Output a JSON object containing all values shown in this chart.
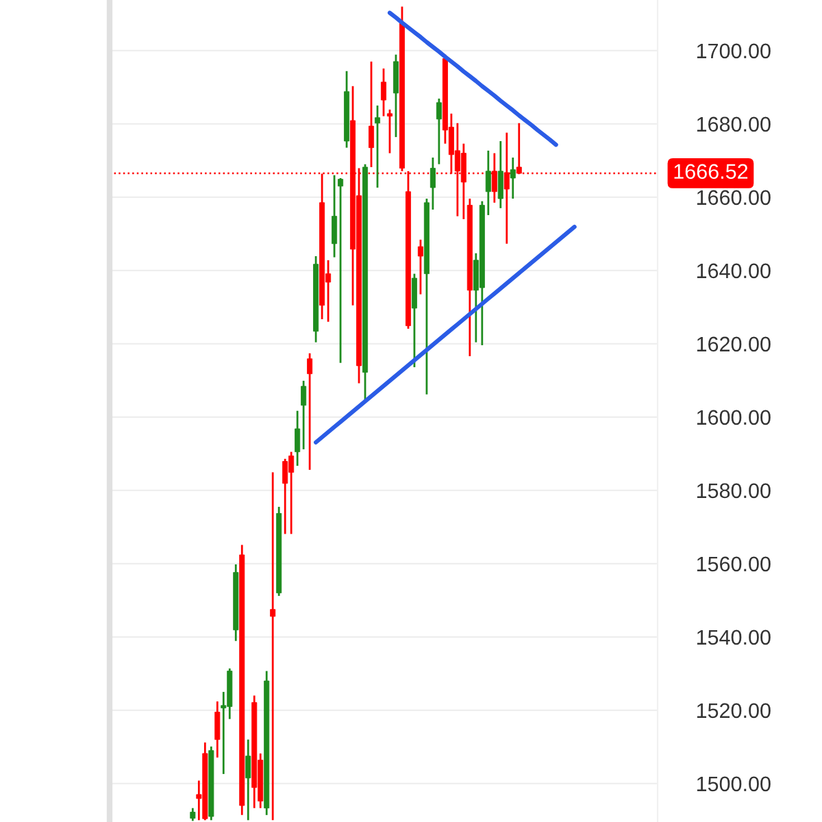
{
  "chart_data": {
    "type": "candlestick",
    "categories": [
      null,
      null,
      null,
      null,
      null,
      null,
      null,
      null,
      null,
      null,
      null,
      null,
      null,
      null,
      null,
      null,
      null,
      null,
      null,
      null,
      null,
      null,
      null,
      null,
      null,
      null,
      null,
      null,
      null,
      null,
      null,
      null,
      null,
      null,
      null,
      null,
      null,
      null,
      null,
      null,
      null,
      null,
      null,
      null,
      null,
      null,
      null,
      null,
      null,
      null,
      null,
      null,
      null,
      null,
      null,
      null,
      null,
      null,
      null,
      null,
      null,
      null,
      null,
      null,
      null,
      null,
      null,
      null,
      null,
      null,
      null,
      null,
      null,
      null,
      null,
      null,
      null,
      null,
      null,
      null,
      null,
      null,
      null,
      null,
      null,
      null,
      null,
      null,
      null
    ],
    "ohlc": [
      null,
      null,
      null,
      null,
      null,
      null,
      null,
      null,
      null,
      null,
      null,
      null,
      null,
      [
        1490.5,
        1493.3,
        1489.8,
        1492.2
      ],
      [
        1497.0,
        1500.8,
        1490.0,
        1495.9
      ],
      [
        1508.2,
        1511.2,
        1490.0,
        1490.4
      ],
      [
        1491.0,
        1510.1,
        1490.0,
        1509.0
      ],
      [
        1519.5,
        1522.4,
        1507.1,
        1512.0
      ],
      [
        1520.6,
        1525.0,
        1502.6,
        1521.3
      ],
      [
        1521.0,
        1531.4,
        1517.6,
        1530.7
      ],
      [
        1541.9,
        1559.8,
        1538.9,
        1557.6
      ],
      [
        1562.4,
        1565.1,
        1491.4,
        1494.0
      ],
      [
        1501.5,
        1512.0,
        1490.0,
        1507.5
      ],
      [
        1522.1,
        1524.0,
        1493.3,
        1498.9
      ],
      [
        1506.4,
        1508.2,
        1493.3,
        1495.2
      ],
      [
        1493.3,
        1530.7,
        1491.4,
        1528.0
      ],
      [
        1547.5,
        1584.9,
        1490.0,
        1545.6
      ],
      [
        1552.0,
        1575.5,
        1551.2,
        1573.7
      ],
      [
        1587.9,
        1588.6,
        1568.1,
        1581.9
      ],
      [
        1589.4,
        1590.5,
        1568.1,
        1584.9
      ],
      [
        1590.5,
        1601.7,
        1586.7,
        1596.8
      ],
      [
        1603.2,
        1609.9,
        1591.2,
        1608.4
      ],
      [
        1615.9,
        1617.4,
        1585.6,
        1611.8
      ],
      [
        1623.4,
        1643.9,
        1620.4,
        1641.7
      ],
      [
        1658.5,
        1666.4,
        1626.7,
        1630.5
      ],
      [
        1639.1,
        1642.8,
        1626.0,
        1636.8
      ],
      [
        1647.3,
        1666.0,
        1643.6,
        1654.8
      ],
      [
        1663.0,
        1665.2,
        1614.8,
        1664.9
      ],
      [
        1675.3,
        1694.4,
        1673.5,
        1688.8
      ],
      [
        1680.9,
        1690.3,
        1630.5,
        1645.8
      ],
      [
        1660.4,
        1667.9,
        1609.2,
        1614.0
      ],
      [
        1612.2,
        1669.0,
        1604.3,
        1668.2
      ],
      [
        1679.4,
        1697.0,
        1668.2,
        1673.5
      ],
      [
        1680.2,
        1685.0,
        1662.6,
        1681.7
      ],
      [
        1691.4,
        1695.1,
        1682.1,
        1686.5
      ],
      [
        1682.8,
        1683.9,
        1672.0,
        1682.1
      ],
      [
        1688.4,
        1698.9,
        1676.4,
        1697.0
      ],
      [
        1707.5,
        1712.0,
        1667.1,
        1667.9
      ],
      [
        1661.5,
        1667.1,
        1624.1,
        1624.9
      ],
      [
        1629.7,
        1639.1,
        1613.6,
        1637.9
      ],
      [
        1646.5,
        1648.4,
        1633.5,
        1643.9
      ],
      [
        1639.1,
        1659.6,
        1606.2,
        1658.5
      ],
      [
        1662.6,
        1670.8,
        1656.6,
        1667.9
      ],
      [
        1681.3,
        1686.9,
        1669.0,
        1685.8
      ],
      [
        1697.8,
        1698.9,
        1674.6,
        1678.3
      ],
      [
        1679.1,
        1682.8,
        1666.4,
        1671.6
      ],
      [
        1672.7,
        1680.2,
        1654.8,
        1667.1
      ],
      [
        1672.0,
        1674.6,
        1654.0,
        1664.1
      ],
      [
        1657.8,
        1659.6,
        1616.6,
        1634.6
      ],
      [
        1634.6,
        1644.7,
        1620.4,
        1642.8
      ],
      [
        1635.3,
        1658.9,
        1619.6,
        1657.8
      ],
      [
        1661.5,
        1672.7,
        1655.1,
        1667.1
      ],
      [
        1667.1,
        1672.0,
        1658.5,
        1661.5
      ],
      [
        1659.6,
        1675.3,
        1657.0,
        1667.1
      ],
      [
        1666.7,
        1677.6,
        1647.3,
        1662.2
      ],
      [
        1665.2,
        1670.8,
        1659.6,
        1667.5
      ],
      [
        1668.2,
        1680.2,
        1666.4,
        1666.5
      ],
      null,
      null,
      null,
      null,
      null,
      null,
      null,
      null,
      null,
      null,
      null,
      null,
      null,
      null,
      null,
      null,
      null,
      null,
      null,
      null,
      null,
      null
    ],
    "colors": [
      null,
      null,
      null,
      null,
      null,
      null,
      null,
      null,
      null,
      null,
      null,
      null,
      null,
      "#1e8c1e",
      "#ff0000",
      "#ff0000",
      "#1e8c1e",
      "#ff0000",
      "#1e8c1e",
      "#1e8c1e",
      "#1e8c1e",
      "#ff0000",
      "#1e8c1e",
      "#ff0000",
      "#ff0000",
      "#1e8c1e",
      "#ff0000",
      "#1e8c1e",
      "#ff0000",
      "#ff0000",
      "#1e8c1e",
      "#1e8c1e",
      "#ff0000",
      "#1e8c1e",
      "#ff0000",
      "#ff0000",
      "#1e8c1e",
      "#1e8c1e",
      "#1e8c1e",
      "#ff0000",
      "#ff0000",
      "#1e8c1e",
      "#ff0000",
      "#1e8c1e",
      "#ff0000",
      "#ff0000",
      "#1e8c1e",
      "#ff0000",
      "#ff0000",
      "#1e8c1e",
      "#ff0000",
      "#1e8c1e",
      "#1e8c1e",
      "#1e8c1e",
      "#ff0000",
      "#ff0000",
      "#ff0000",
      "#ff0000",
      "#ff0000",
      "#1e8c1e",
      "#1e8c1e",
      "#1e8c1e",
      "#ff0000",
      "#1e8c1e",
      "#ff0000",
      "#1e8c1e",
      "#ff0000",
      null,
      null,
      null,
      null,
      null,
      null,
      null,
      null,
      null,
      null,
      null,
      null,
      null,
      null,
      null,
      null,
      null,
      null,
      null,
      null,
      null,
      null
    ],
    "series": [
      {
        "type": "line",
        "color": "#2b5ce6",
        "values": [
          null,
          null,
          null,
          null,
          null,
          null,
          null,
          null,
          null,
          null,
          null,
          null,
          null,
          null,
          null,
          null,
          null,
          null,
          null,
          null,
          null,
          null,
          null,
          null,
          null,
          null,
          null,
          null,
          null,
          null,
          null,
          null,
          null,
          null,
          null,
          null,
          null,
          null,
          null,
          null,
          null,
          null,
          null,
          null,
          null,
          1710.3,
          1709.0,
          1707.6,
          1706.3,
          1705.0,
          1703.7,
          1702.3,
          1701.0,
          1699.7,
          1698.3,
          1697.0,
          1695.7,
          1694.3,
          1693.0,
          1691.7,
          1690.3,
          1689.0,
          1687.7,
          1686.3,
          1685.0,
          1683.7,
          1682.3,
          1681.0,
          1679.7,
          1678.3,
          1677.0,
          1675.7,
          1674.3,
          null,
          null,
          null,
          null,
          null,
          null,
          null,
          null,
          null,
          null,
          null,
          null,
          null,
          null,
          null,
          null
        ]
      },
      {
        "type": "line",
        "color": "#2b5ce6",
        "values": [
          null,
          null,
          null,
          null,
          null,
          null,
          null,
          null,
          null,
          null,
          null,
          null,
          null,
          null,
          null,
          null,
          null,
          null,
          null,
          null,
          null,
          null,
          null,
          null,
          null,
          null,
          null,
          null,
          null,
          null,
          null,
          null,
          null,
          1593.1,
          1594.5,
          1595.9,
          1597.3,
          1598.7,
          1600.1,
          1601.5,
          1602.9,
          1604.3,
          1605.7,
          1607.1,
          1608.5,
          1609.9,
          1611.3,
          1612.7,
          1614.1,
          1615.5,
          1616.9,
          1618.3,
          1619.7,
          1621.1,
          1622.5,
          1623.9,
          1625.3,
          1626.7,
          1628.1,
          1629.5,
          1630.9,
          1632.3,
          1633.7,
          1635.1,
          1636.5,
          1637.9,
          1639.3,
          1640.7,
          1642.1,
          1643.5,
          1644.9,
          1646.3,
          1647.7,
          1649.1,
          1650.5,
          1651.9,
          null,
          null,
          null,
          null,
          null,
          null,
          null,
          null,
          null,
          null,
          null,
          null,
          null
        ]
      }
    ],
    "ylim": [
      1489.5,
      1713.8
    ],
    "yticks": [
      {
        "value": 1500,
        "label": "1500.00"
      },
      {
        "value": 1520,
        "label": "1520.00"
      },
      {
        "value": 1540,
        "label": "1540.00"
      },
      {
        "value": 1560,
        "label": "1560.00"
      },
      {
        "value": 1580,
        "label": "1580.00"
      },
      {
        "value": 1600,
        "label": "1600.00"
      },
      {
        "value": 1620,
        "label": "1620.00"
      },
      {
        "value": 1640,
        "label": "1640.00"
      },
      {
        "value": 1660,
        "label": "1660.00"
      },
      {
        "value": 1680,
        "label": "1680.00"
      },
      {
        "value": 1700,
        "label": "1700.00"
      }
    ],
    "ref_lines": [
      {
        "axis": "y",
        "value": 1666.52,
        "label": "1666.52",
        "color": "#ff0000",
        "line_style": "dotted"
      }
    ],
    "grid": "y",
    "tick_labels": "y"
  }
}
